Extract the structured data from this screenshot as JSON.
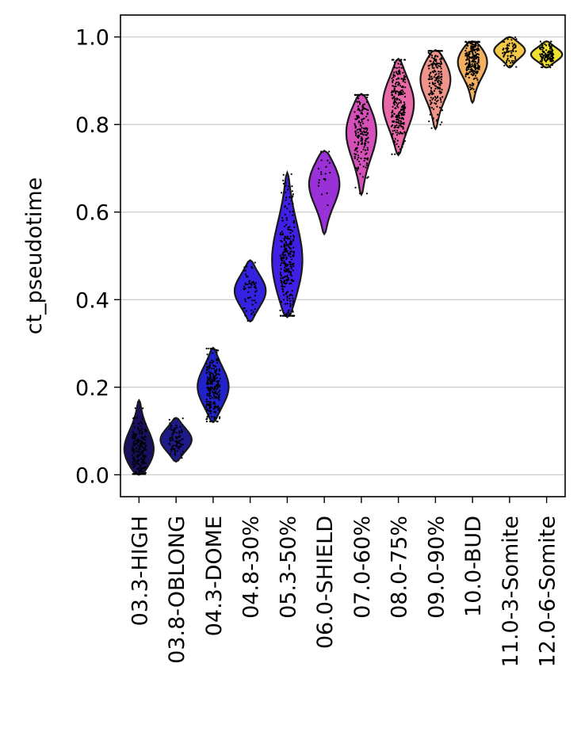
{
  "chart_data": {
    "type": "violin",
    "ylabel": "ct_pseudotime",
    "ylim": [
      -0.05,
      1.05
    ],
    "yticks": [
      0.0,
      0.2,
      0.4,
      0.6,
      0.8,
      1.0
    ],
    "ytick_labels": [
      "0.0",
      "0.2",
      "0.4",
      "0.6",
      "0.8",
      "1.0"
    ],
    "grid": "horizontal",
    "categories": [
      "03.3-HIGH",
      "03.8-OBLONG",
      "04.3-DOME",
      "04.8-30%",
      "05.3-50%",
      "06.0-SHIELD",
      "07.0-60%",
      "08.0-75%",
      "09.0-90%",
      "10.0-BUD",
      "11.0-3-Somite",
      "12.0-6-Somite"
    ],
    "series": [
      {
        "category": "03.3-HIGH",
        "color": "#1a1060",
        "min": 0.0,
        "max": 0.17,
        "median": 0.05,
        "points": 220
      },
      {
        "category": "03.8-OBLONG",
        "color": "#1e1a8a",
        "min": 0.03,
        "max": 0.13,
        "median": 0.08,
        "points": 90
      },
      {
        "category": "04.3-DOME",
        "color": "#2222cc",
        "min": 0.12,
        "max": 0.29,
        "median": 0.2,
        "points": 240
      },
      {
        "category": "04.8-30%",
        "color": "#3322e0",
        "min": 0.35,
        "max": 0.49,
        "median": 0.42,
        "points": 60
      },
      {
        "category": "05.3-50%",
        "color": "#4020e6",
        "min": 0.36,
        "max": 0.69,
        "median": 0.48,
        "points": 300
      },
      {
        "category": "06.0-SHIELD",
        "color": "#9a30d8",
        "min": 0.55,
        "max": 0.74,
        "median": 0.67,
        "points": 20
      },
      {
        "category": "07.0-60%",
        "color": "#d450b8",
        "min": 0.64,
        "max": 0.87,
        "median": 0.79,
        "points": 180
      },
      {
        "category": "08.0-75%",
        "color": "#e868a8",
        "min": 0.73,
        "max": 0.95,
        "median": 0.85,
        "points": 260
      },
      {
        "category": "09.0-90%",
        "color": "#f0948a",
        "min": 0.79,
        "max": 0.97,
        "median": 0.91,
        "points": 200
      },
      {
        "category": "10.0-BUD",
        "color": "#f2b060",
        "min": 0.85,
        "max": 0.99,
        "median": 0.95,
        "points": 260
      },
      {
        "category": "11.0-3-Somite",
        "color": "#f4c848",
        "min": 0.93,
        "max": 1.0,
        "median": 0.97,
        "points": 70
      },
      {
        "category": "12.0-6-Somite",
        "color": "#f0e030",
        "min": 0.93,
        "max": 0.99,
        "median": 0.96,
        "points": 130
      }
    ]
  }
}
